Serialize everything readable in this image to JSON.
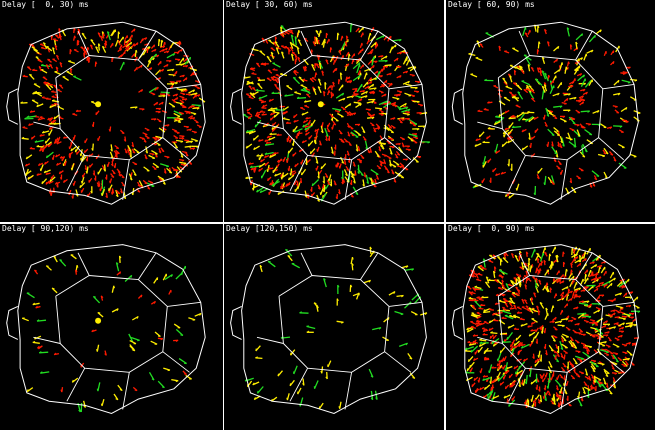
{
  "panels": [
    {
      "label": "Delay [  0, 30) ms",
      "source_dot": true,
      "red": 0.85,
      "yellow": 0.45,
      "green": 0.07,
      "spread": "ring"
    },
    {
      "label": "Delay [ 30, 60) ms",
      "source_dot": true,
      "red": 0.75,
      "yellow": 0.45,
      "green": 0.1,
      "spread": "full"
    },
    {
      "label": "Delay [ 60, 90) ms",
      "source_dot": false,
      "red": 0.45,
      "yellow": 0.55,
      "green": 0.15,
      "spread": "core"
    },
    {
      "label": "Delay [ 90,120) ms",
      "source_dot": true,
      "red": 0.1,
      "yellow": 0.25,
      "green": 0.12,
      "spread": "sparse"
    },
    {
      "label": "Delay [120,150) ms",
      "source_dot": false,
      "red": 0.0,
      "yellow": 0.3,
      "green": 0.15,
      "spread": "sparse"
    },
    {
      "label": "Delay [  0, 90) ms",
      "source_dot": false,
      "red": 0.9,
      "yellow": 0.55,
      "green": 0.15,
      "spread": "full"
    }
  ],
  "colors": {
    "background": "#000000",
    "outline": "#ffffff",
    "early_arrow": "#ff1a00",
    "mid_arrow": "#ffee00",
    "late_arrow": "#22dd22",
    "source_dot": "#ffee00",
    "divider": "#ffffff"
  }
}
